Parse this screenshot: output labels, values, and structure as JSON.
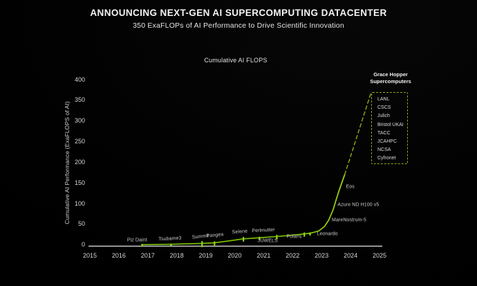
{
  "header": {
    "title": "ANNOUNCING NEXT-GEN AI SUPERCOMPUTING DATACENTER",
    "subtitle": "350 ExaFLOPs of AI Performance to Drive Scientific Innovation"
  },
  "chart_data": {
    "type": "line",
    "title": "Cumulative AI FLOPS",
    "xlabel": "",
    "ylabel": "Cumulative AI Performance (ExaFLOPS of AI)",
    "xlim": [
      2015,
      2025
    ],
    "ylim": [
      0,
      400
    ],
    "grid": false,
    "x_ticks": [
      2015,
      2016,
      2017,
      2018,
      2019,
      2020,
      2021,
      2022,
      2023,
      2024,
      2025
    ],
    "y_ticks": [
      0,
      50,
      100,
      150,
      200,
      250,
      300,
      350,
      400
    ],
    "colors": {
      "line": "#76b900",
      "line_bright": "#a6db12",
      "marker": "#93d90e",
      "dashed": "#8aae15",
      "axis": "#c9c9c9"
    },
    "series": [
      {
        "name": "cumulative-ai-performance-solid",
        "style": "solid",
        "points": [
          [
            2016.8,
            0
          ],
          [
            2017.2,
            0.4
          ],
          [
            2017.8,
            1
          ],
          [
            2018.3,
            2
          ],
          [
            2018.87,
            3
          ],
          [
            2019.3,
            4.5
          ],
          [
            2019.8,
            9
          ],
          [
            2020.3,
            14
          ],
          [
            2020.8,
            16.5
          ],
          [
            2021.0,
            17.5
          ],
          [
            2021.4,
            19.5
          ],
          [
            2021.75,
            21.5
          ],
          [
            2022.2,
            24.5
          ],
          [
            2022.6,
            27.5
          ],
          [
            2022.9,
            33
          ],
          [
            2023.1,
            44
          ],
          [
            2023.25,
            60
          ],
          [
            2023.4,
            85
          ],
          [
            2023.5,
            108
          ],
          [
            2023.6,
            130
          ],
          [
            2023.7,
            150
          ],
          [
            2023.8,
            170
          ]
        ]
      },
      {
        "name": "grace-hopper-projection-dashed",
        "style": "dashed",
        "points": [
          [
            2023.8,
            170
          ],
          [
            2024.7,
            366
          ]
        ]
      }
    ],
    "markers": [
      {
        "x": 2016.8,
        "y": 0.5,
        "h": 4
      },
      {
        "x": 2017.8,
        "y": 1.2,
        "h": 4
      },
      {
        "x": 2018.87,
        "y": 3,
        "h": 9
      },
      {
        "x": 2019.3,
        "y": 4.5,
        "h": 6.5
      },
      {
        "x": 2020.3,
        "y": 14.8,
        "h": 7
      },
      {
        "x": 2020.85,
        "y": 16.8,
        "h": 5
      },
      {
        "x": 2021.45,
        "y": 19.8,
        "h": 7
      },
      {
        "x": 2022.4,
        "y": 26,
        "h": 6.5
      },
      {
        "x": 2022.6,
        "y": 27.5,
        "h": 5
      }
    ],
    "systems": [
      {
        "label": "Piz Daint",
        "label_x": 2016.63,
        "label_y": 11,
        "tilt": 0
      },
      {
        "label": "Tsubame3",
        "label_x": 2017.77,
        "label_y": 14,
        "tilt": -3
      },
      {
        "label": "Summit",
        "label_x": 2018.83,
        "label_y": 19.5,
        "tilt": -6
      },
      {
        "label": "Pangea",
        "label_x": 2019.33,
        "label_y": 21.5,
        "tilt": -6
      },
      {
        "label": "Selene",
        "label_x": 2020.18,
        "label_y": 30,
        "tilt": -4
      },
      {
        "label": "Perlmutter",
        "label_x": 2021.0,
        "label_y": 34,
        "tilt": -3
      },
      {
        "label": "JUWELS",
        "label_x": 2021.14,
        "label_y": 9,
        "tilt": 0
      },
      {
        "label": "Polaris",
        "label_x": 2022.05,
        "label_y": 19,
        "tilt": 0
      },
      {
        "label": "Leonardo",
        "label_x": 2023.2,
        "label_y": 26,
        "tilt": 0
      },
      {
        "label": "MareNostrum-5",
        "label_x": 2023.95,
        "label_y": 59,
        "tilt": 0
      },
      {
        "label": "Azure ND H100 v5",
        "label_x": 2024.27,
        "label_y": 96,
        "tilt": 0
      },
      {
        "label": "Eos",
        "label_x": 2023.99,
        "label_y": 139,
        "tilt": 0
      }
    ],
    "legend": {
      "header": "Grace Hopper Supercomputers",
      "position": "right",
      "items": [
        "LANL",
        "CSCS",
        "Julich",
        "Bristol UKAI",
        "TACC",
        "JCAHPC",
        "NCSA",
        "Cyfronet"
      ]
    }
  }
}
